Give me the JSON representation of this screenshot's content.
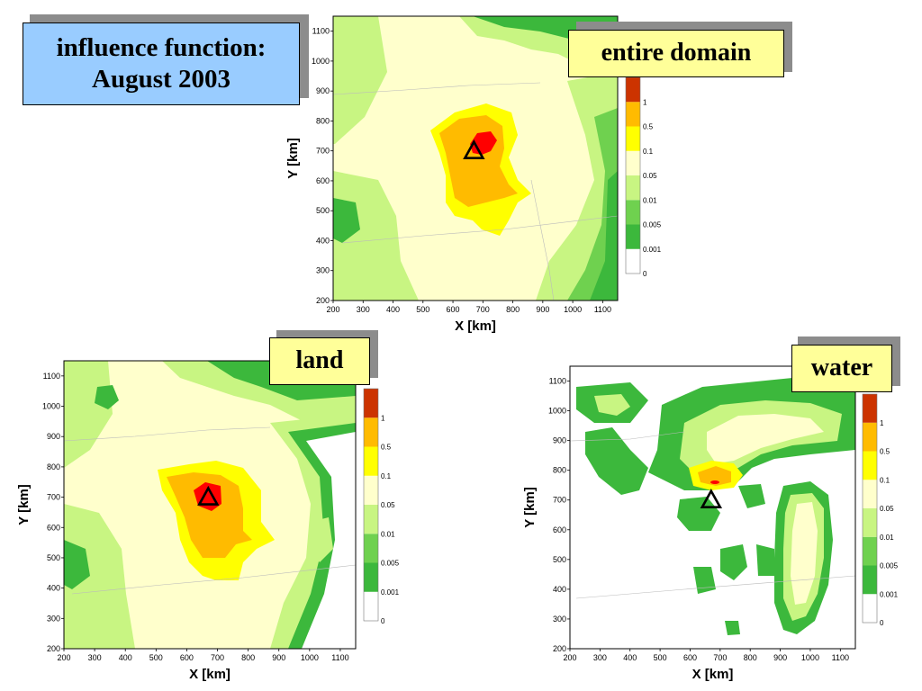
{
  "title": {
    "line1": "influence function:",
    "line2": "August 2003"
  },
  "palette": {
    "0": "#ffffff",
    "0.001": "#3cb83c",
    "0.005": "#6fd14f",
    "0.01": "#c8f582",
    "0.05": "#ffffcc",
    "0.1": "#ffff00",
    "0.5": "#ffbb00",
    "1": "#ff0000",
    "max": "#cc3300",
    "shadow": "#8c8c8c",
    "title_bg": "#99ccff",
    "label_bg": "#ffff99"
  },
  "chart_data": [
    {
      "type": "heatmap",
      "label": "entire domain",
      "xlabel": "X [km]",
      "ylabel": "Y [km]",
      "xlim": [
        200,
        1150
      ],
      "ylim": [
        200,
        1150
      ],
      "xticks": [
        "200",
        "300",
        "400",
        "500",
        "600",
        "700",
        "800",
        "900",
        "1000",
        "1100"
      ],
      "yticks": [
        "200",
        "300",
        "400",
        "500",
        "600",
        "700",
        "800",
        "900",
        "1000",
        "1100"
      ],
      "colorbar": [
        "0",
        "0.001",
        "0.005",
        "0.01",
        "0.05",
        "0.1",
        "0.5",
        "1"
      ],
      "receptor": {
        "x": 670,
        "y": 700
      }
    },
    {
      "type": "heatmap",
      "label": "land",
      "xlabel": "X [km]",
      "ylabel": "Y [km]",
      "xlim": [
        200,
        1150
      ],
      "ylim": [
        200,
        1150
      ],
      "xticks": [
        "200",
        "300",
        "400",
        "500",
        "600",
        "700",
        "800",
        "900",
        "1000",
        "1100"
      ],
      "yticks": [
        "200",
        "300",
        "400",
        "500",
        "600",
        "700",
        "800",
        "900",
        "1000",
        "1100"
      ],
      "colorbar": [
        "0",
        "0.001",
        "0.005",
        "0.01",
        "0.05",
        "0.1",
        "0.5",
        "1"
      ],
      "receptor": {
        "x": 670,
        "y": 700
      }
    },
    {
      "type": "heatmap",
      "label": "water",
      "xlabel": "X [km]",
      "ylabel": "Y [km]",
      "xlim": [
        200,
        1150
      ],
      "ylim": [
        200,
        1150
      ],
      "xticks": [
        "200",
        "300",
        "400",
        "500",
        "600",
        "700",
        "800",
        "900",
        "1000",
        "1100"
      ],
      "yticks": [
        "200",
        "300",
        "400",
        "500",
        "600",
        "700",
        "800",
        "900",
        "1000",
        "1100"
      ],
      "colorbar": [
        "0",
        "0.001",
        "0.005",
        "0.01",
        "0.05",
        "0.1",
        "0.5",
        "1"
      ],
      "receptor": {
        "x": 670,
        "y": 700
      }
    }
  ]
}
